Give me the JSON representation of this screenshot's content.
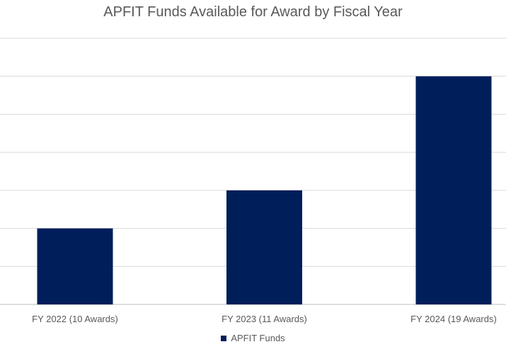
{
  "chart_data": {
    "type": "bar",
    "title": "APFIT Funds Available for Award by Fiscal Year",
    "categories": [
      "FY 2022 (10 Awards)",
      "FY 2023 (11 Awards)",
      "FY 2024 (19 Awards)"
    ],
    "series": [
      {
        "name": "APFIT Funds",
        "values": [
          2,
          3,
          6
        ],
        "color": "#001E5A"
      }
    ],
    "ylim": [
      0,
      7
    ],
    "grid": true,
    "legend": "bottom",
    "y_tick_labels_visible": false
  }
}
